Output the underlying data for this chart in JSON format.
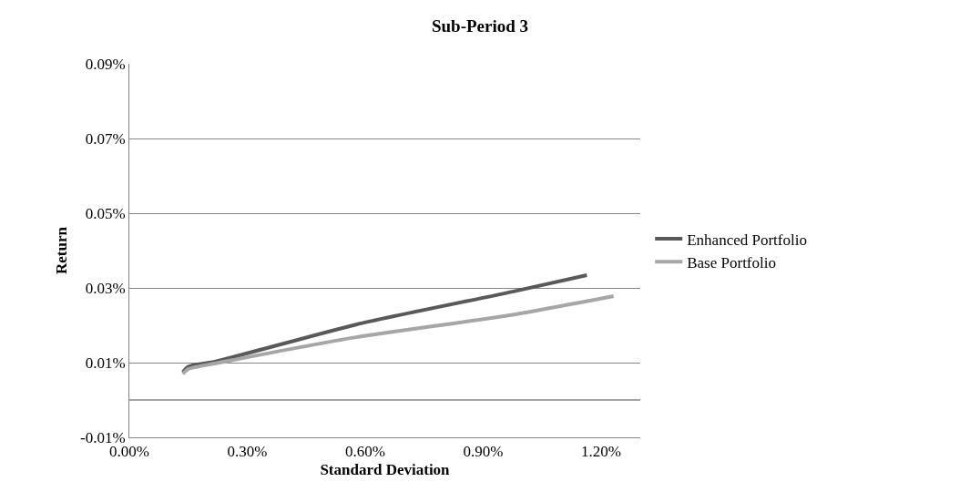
{
  "chart_data": {
    "type": "line",
    "title": "Sub-Period 3",
    "xlabel": "Standard Deviation",
    "ylabel": "Return",
    "xlim": [
      0,
      1.3
    ],
    "xticks": [
      {
        "value": 0,
        "label": "0.00%"
      },
      {
        "value": 0.3,
        "label": "0.30%"
      },
      {
        "value": 0.6,
        "label": "0.60%"
      },
      {
        "value": 0.9,
        "label": "0.90%"
      },
      {
        "value": 1.2,
        "label": "1.20%"
      }
    ],
    "ylim": [
      -0.01,
      0.09
    ],
    "yticks": [
      {
        "value": -0.01,
        "label": "-0.01%"
      },
      {
        "value": 0.01,
        "label": "0.01%"
      },
      {
        "value": 0.03,
        "label": "0.03%"
      },
      {
        "value": 0.05,
        "label": "0.05%"
      },
      {
        "value": 0.07,
        "label": "0.07%"
      },
      {
        "value": 0.09,
        "label": "0.09%"
      }
    ],
    "grid": "y",
    "legend": "right",
    "marker": "none",
    "line_style": "solid",
    "ref_lines": [
      {
        "axis": "y",
        "value": 0,
        "color": "#868686"
      }
    ],
    "series": [
      {
        "name": "Enhanced Portfolio",
        "color": "#595959",
        "x": [
          0.136,
          0.15,
          0.22,
          0.577,
          0.975,
          1.164
        ],
        "values": [
          0.0075,
          0.0089,
          0.0103,
          0.0202,
          0.029,
          0.0334
        ]
      },
      {
        "name": "Base Portfolio",
        "color": "#a6a6a6",
        "x": [
          0.136,
          0.15,
          0.22,
          0.577,
          0.975,
          1.232
        ],
        "values": [
          0.007,
          0.0083,
          0.0098,
          0.0168,
          0.0228,
          0.0278
        ]
      }
    ]
  }
}
